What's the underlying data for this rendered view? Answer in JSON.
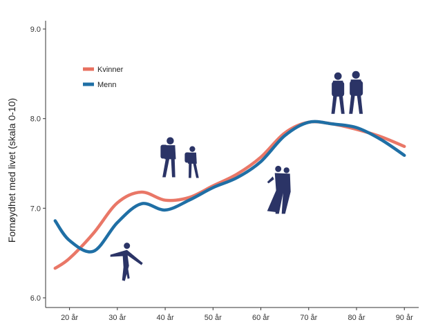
{
  "chart_data": {
    "type": "line",
    "title": "",
    "xlabel": "",
    "ylabel": "Fornøydhet med livet (skala 0-10)",
    "xlim": [
      15,
      93
    ],
    "ylim": [
      6.0,
      9.0
    ],
    "x_ticks": [
      20,
      30,
      40,
      50,
      60,
      70,
      80,
      90
    ],
    "x_tick_labels": [
      "20 år",
      "30 år",
      "40 år",
      "50 år",
      "60 år",
      "70 år",
      "80 år",
      "90 år"
    ],
    "y_ticks": [
      6.0,
      7.0,
      8.0,
      9.0
    ],
    "y_tick_labels": [
      "6.0",
      "7.0",
      "8.0",
      "9.0"
    ],
    "grid": false,
    "legend_position": "top-left",
    "series": [
      {
        "name": "Kvinner",
        "color": "#e8705f",
        "x": [
          17,
          20,
          25,
          30,
          35,
          40,
          45,
          50,
          55,
          60,
          65,
          70,
          75,
          80,
          85,
          90
        ],
        "y": [
          6.33,
          6.44,
          6.72,
          7.06,
          7.18,
          7.09,
          7.12,
          7.25,
          7.38,
          7.57,
          7.84,
          7.96,
          7.94,
          7.88,
          7.8,
          7.69
        ]
      },
      {
        "name": "Menn",
        "color": "#1f6fa5",
        "x": [
          17,
          20,
          25,
          30,
          35,
          40,
          45,
          50,
          55,
          60,
          65,
          70,
          75,
          80,
          85,
          90
        ],
        "y": [
          6.86,
          6.64,
          6.52,
          6.84,
          7.05,
          6.98,
          7.09,
          7.23,
          7.34,
          7.52,
          7.81,
          7.96,
          7.94,
          7.9,
          7.77,
          7.59
        ]
      }
    ],
    "annotations": [
      {
        "name": "skater-icon",
        "x": 32,
        "y": 6.45
      },
      {
        "name": "hikers-icon",
        "x": 42.5,
        "y": 7.6
      },
      {
        "name": "dancers-icon",
        "x": 64.5,
        "y": 7.2
      },
      {
        "name": "elderly-couple-icon",
        "x": 78,
        "y": 8.3
      }
    ]
  }
}
